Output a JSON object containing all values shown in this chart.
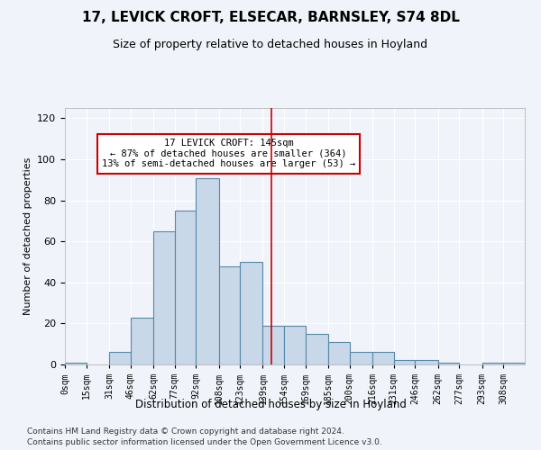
{
  "title1": "17, LEVICK CROFT, ELSECAR, BARNSLEY, S74 8DL",
  "title2": "Size of property relative to detached houses in Hoyland",
  "xlabel": "Distribution of detached houses by size in Hoyland",
  "ylabel": "Number of detached properties",
  "bar_labels": [
    "0sqm",
    "15sqm",
    "31sqm",
    "46sqm",
    "62sqm",
    "77sqm",
    "92sqm",
    "108sqm",
    "123sqm",
    "139sqm",
    "154sqm",
    "169sqm",
    "185sqm",
    "200sqm",
    "216sqm",
    "231sqm",
    "246sqm",
    "262sqm",
    "277sqm",
    "293sqm",
    "308sqm"
  ],
  "bar_values": [
    1,
    0,
    6,
    23,
    65,
    75,
    91,
    48,
    50,
    19,
    19,
    15,
    11,
    6,
    6,
    2,
    2,
    1,
    0,
    1,
    1
  ],
  "bin_edges": [
    0,
    15,
    31,
    46,
    62,
    77,
    92,
    108,
    123,
    139,
    154,
    169,
    185,
    200,
    216,
    231,
    246,
    262,
    277,
    293,
    308
  ],
  "bar_color": "#c8d8e8",
  "bar_edgecolor": "#5588aa",
  "vline_x": 145,
  "vline_color": "#cc0000",
  "annotation_text": "17 LEVICK CROFT: 145sqm\n← 87% of detached houses are smaller (364)\n13% of semi-detached houses are larger (53) →",
  "annotation_box_edgecolor": "#cc0000",
  "ylim": [
    0,
    125
  ],
  "yticks": [
    0,
    20,
    40,
    60,
    80,
    100,
    120
  ],
  "footer1": "Contains HM Land Registry data © Crown copyright and database right 2024.",
  "footer2": "Contains public sector information licensed under the Open Government Licence v3.0.",
  "bg_color": "#f0f4fa",
  "grid_color": "#ffffff"
}
